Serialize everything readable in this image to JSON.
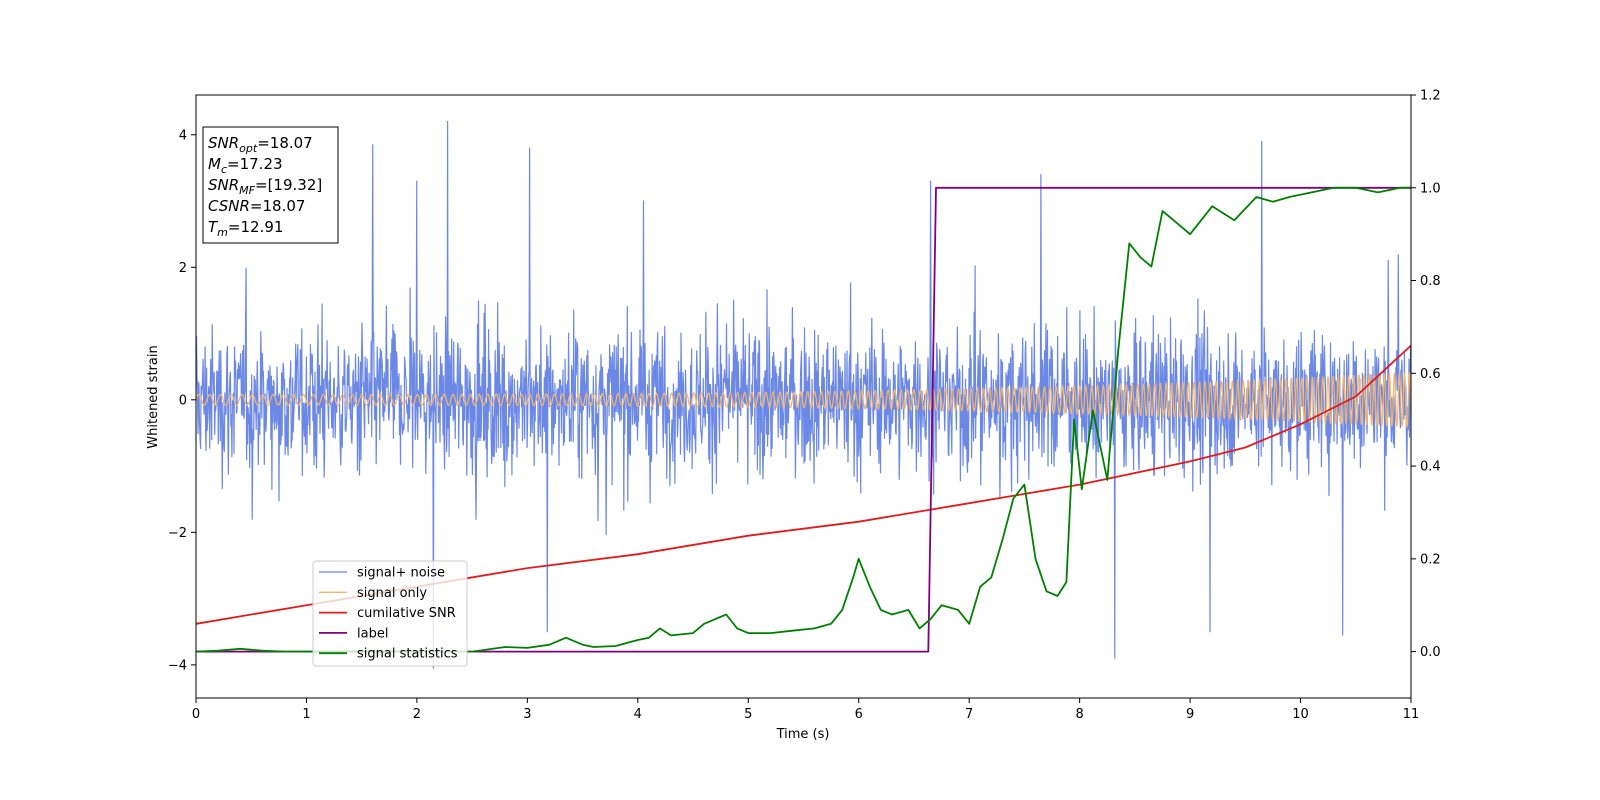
{
  "chart_data": {
    "type": "line",
    "xlabel": "Time (s)",
    "ylabel_left": "Whitened strain",
    "ylabel_right": "",
    "xlim": [
      0,
      11
    ],
    "ylim_left": [
      -4.5,
      4.6
    ],
    "ylim_right": [
      -0.1,
      1.2
    ],
    "x_ticks": [
      0,
      1,
      2,
      3,
      4,
      5,
      6,
      7,
      8,
      9,
      10,
      11
    ],
    "y_ticks_left": [
      -4,
      -2,
      0,
      2,
      4
    ],
    "y_ticks_right": [
      0.0,
      0.2,
      0.4,
      0.6,
      0.8,
      1.0,
      1.2
    ],
    "y_tick_labels_left": [
      "−4",
      "−2",
      "0",
      "2",
      "4"
    ],
    "y_tick_labels_right": [
      "0.0",
      "0.2",
      "0.4",
      "0.6",
      "0.8",
      "1.0",
      "1.2"
    ],
    "legend_position": "lower-left",
    "grid": false,
    "series": [
      {
        "name": "signal+ noise",
        "axis": "left",
        "color": "#6b88e6",
        "style": "noise",
        "amplitude_typical": 1.2,
        "peaks": [
          [
            2.28,
            4.2
          ],
          [
            1.6,
            3.85
          ],
          [
            2.0,
            3.3
          ],
          [
            3.02,
            3.8
          ],
          [
            4.05,
            3.0
          ],
          [
            6.65,
            3.3
          ],
          [
            7.65,
            3.4
          ],
          [
            9.65,
            3.9
          ],
          [
            8.32,
            -3.9
          ],
          [
            2.15,
            -4.05
          ],
          [
            10.38,
            -3.55
          ],
          [
            3.18,
            -3.5
          ],
          [
            9.18,
            -3.5
          ]
        ]
      },
      {
        "name": "signal only",
        "axis": "left",
        "color": "#f5b56a",
        "style": "chirp",
        "amplitude_start": 0.08,
        "amplitude_end": 0.42
      },
      {
        "name": "cumilative SNR",
        "axis": "right",
        "color": "#e31a1c",
        "x": [
          0,
          1,
          2,
          3,
          4,
          5,
          6,
          7,
          8,
          9,
          9.5,
          10,
          10.5,
          11
        ],
        "y": [
          0.06,
          0.1,
          0.14,
          0.18,
          0.21,
          0.25,
          0.28,
          0.32,
          0.36,
          0.41,
          0.44,
          0.49,
          0.55,
          0.66
        ]
      },
      {
        "name": "label",
        "axis": "right",
        "color": "#800080",
        "x": [
          0,
          6.63,
          6.7,
          11
        ],
        "y": [
          0.0,
          0.0,
          1.0,
          1.0
        ]
      },
      {
        "name": "signal statistics",
        "axis": "right",
        "color": "#008000",
        "x": [
          0,
          0.2,
          0.4,
          0.6,
          0.8,
          1.0,
          1.5,
          2.0,
          2.5,
          2.8,
          3.0,
          3.2,
          3.35,
          3.5,
          3.6,
          3.8,
          4.0,
          4.1,
          4.2,
          4.3,
          4.5,
          4.6,
          4.8,
          4.9,
          5.0,
          5.2,
          5.4,
          5.6,
          5.75,
          5.85,
          5.95,
          6.0,
          6.1,
          6.2,
          6.3,
          6.45,
          6.55,
          6.65,
          6.75,
          6.9,
          7.0,
          7.1,
          7.2,
          7.3,
          7.4,
          7.5,
          7.6,
          7.7,
          7.8,
          7.88,
          7.95,
          8.02,
          8.12,
          8.25,
          8.35,
          8.45,
          8.55,
          8.65,
          8.75,
          8.85,
          9.0,
          9.2,
          9.4,
          9.6,
          9.75,
          9.9,
          10.1,
          10.3,
          10.5,
          10.7,
          10.9,
          11.0
        ],
        "y": [
          0.0,
          0.002,
          0.006,
          0.002,
          0.0,
          0.0,
          0.001,
          0.0,
          0.0,
          0.01,
          0.008,
          0.015,
          0.03,
          0.015,
          0.01,
          0.012,
          0.025,
          0.03,
          0.05,
          0.035,
          0.04,
          0.06,
          0.08,
          0.05,
          0.04,
          0.04,
          0.045,
          0.05,
          0.06,
          0.09,
          0.16,
          0.2,
          0.14,
          0.09,
          0.08,
          0.09,
          0.05,
          0.07,
          0.1,
          0.09,
          0.06,
          0.14,
          0.16,
          0.24,
          0.33,
          0.36,
          0.2,
          0.13,
          0.12,
          0.15,
          0.5,
          0.35,
          0.52,
          0.37,
          0.65,
          0.88,
          0.85,
          0.83,
          0.95,
          0.93,
          0.9,
          0.96,
          0.93,
          0.98,
          0.97,
          0.98,
          0.99,
          1.0,
          1.0,
          0.99,
          1.0,
          1.0
        ]
      }
    ],
    "stats_box": [
      {
        "var": "SNR",
        "sub": "opt",
        "value": "=18.07"
      },
      {
        "var": "M",
        "sub": "c",
        "value": "=17.23"
      },
      {
        "var": "SNR",
        "sub": "MF",
        "value": "=[19.32]"
      },
      {
        "var": "CSNR",
        "sub": "",
        "value": "=18.07"
      },
      {
        "var": "T",
        "sub": "m",
        "value": "=12.91"
      }
    ]
  }
}
